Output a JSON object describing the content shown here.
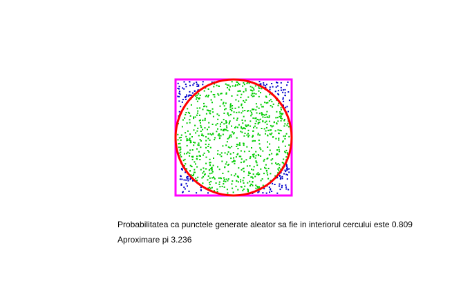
{
  "simulation": {
    "probability_label": "Probabilitatea ca punctele generate aleator sa fie in interiorul cercului este 0.809",
    "pi_label": "Aproximare pi 3.236",
    "probability": 0.809,
    "pi_estimate": 3.236,
    "point_count": 1000,
    "colors": {
      "square": "#ff00ff",
      "circle": "#ff0000",
      "inside_point": "#00cc00",
      "outside_point": "#0000cc",
      "background": "#ffffff"
    }
  }
}
